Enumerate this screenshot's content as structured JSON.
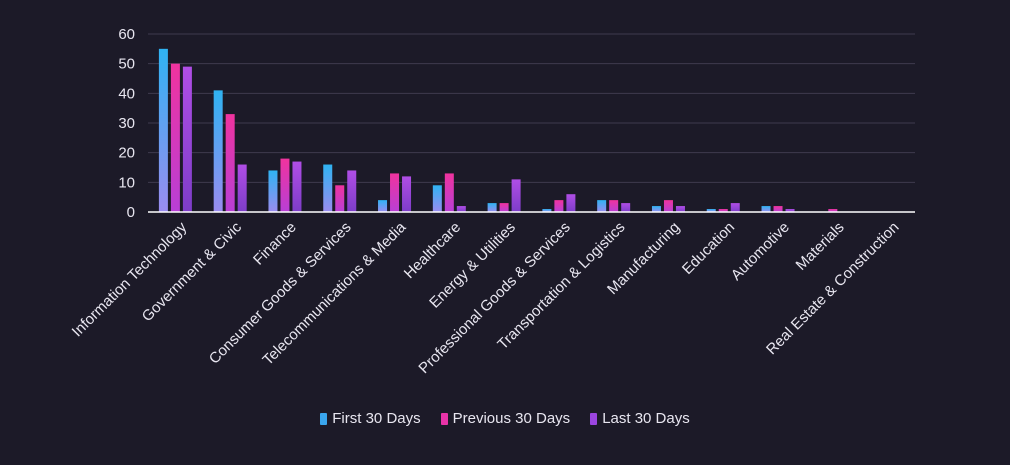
{
  "chart_data": {
    "type": "bar",
    "title": "",
    "xlabel": "",
    "ylabel": "",
    "ylim": [
      0,
      60
    ],
    "yticks": [
      0,
      10,
      20,
      30,
      40,
      50,
      60
    ],
    "grid": true,
    "legend_position": "bottom-center",
    "categories": [
      "Information Technology",
      "Government & Civic",
      "Finance",
      "Consumer Goods & Services",
      "Telecommunications & Media",
      "Healthcare",
      "Energy & Utilities",
      "Professional Goods & Services",
      "Transportation & Logistics",
      "Manufacturing",
      "Education",
      "Automotive",
      "Materials",
      "Real Estate & Construction"
    ],
    "series": [
      {
        "name": "First 30 Days",
        "color_top": "#2fb3f2",
        "color_bottom": "#9a8cf0",
        "legend_color": "#3aa6ee",
        "values": [
          55,
          41,
          14,
          16,
          4,
          9,
          3,
          1,
          4,
          2,
          1,
          2,
          0,
          0
        ]
      },
      {
        "name": "Previous 30 Days",
        "color_top": "#f0339e",
        "color_bottom": "#b83fd6",
        "legend_color": "#e833a8",
        "values": [
          50,
          33,
          18,
          9,
          13,
          13,
          3,
          4,
          4,
          4,
          1,
          2,
          1,
          0
        ]
      },
      {
        "name": "Last 30 Days",
        "color_top": "#b04ee6",
        "color_bottom": "#7d3dc8",
        "legend_color": "#9b45e0",
        "values": [
          49,
          16,
          17,
          14,
          12,
          2,
          11,
          6,
          3,
          2,
          3,
          1,
          0,
          0
        ]
      }
    ]
  }
}
